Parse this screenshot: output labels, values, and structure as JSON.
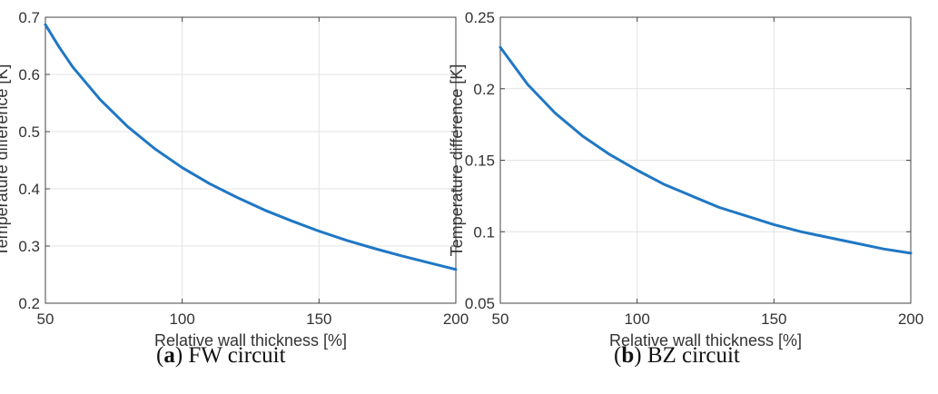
{
  "chart_data": [
    {
      "type": "line",
      "caption": {
        "letter": "a",
        "text": "FW circuit"
      },
      "xlabel": "Relative wall thickness [%]",
      "ylabel": "Temperature difference [K]",
      "xlim": [
        50,
        200
      ],
      "ylim": [
        0.2,
        0.7
      ],
      "xticks": [
        50,
        100,
        150,
        200
      ],
      "yticks": [
        0.2,
        0.3,
        0.4,
        0.5,
        0.6,
        0.7
      ],
      "grid": true,
      "line_color": "#1f77c4",
      "series": [
        {
          "x": [
            50,
            55,
            60,
            70,
            80,
            90,
            100,
            110,
            120,
            130,
            140,
            150,
            160,
            170,
            180,
            190,
            200
          ],
          "values": [
            0.687,
            0.648,
            0.613,
            0.556,
            0.509,
            0.47,
            0.437,
            0.409,
            0.385,
            0.363,
            0.344,
            0.326,
            0.31,
            0.296,
            0.283,
            0.271,
            0.259
          ]
        }
      ]
    },
    {
      "type": "line",
      "caption": {
        "letter": "b",
        "text": "BZ circuit"
      },
      "xlabel": "Relative wall thickness [%]",
      "ylabel": "Temperature difference [K]",
      "xlim": [
        50,
        200
      ],
      "ylim": [
        0.05,
        0.25
      ],
      "xticks": [
        50,
        100,
        150,
        200
      ],
      "yticks": [
        0.05,
        0.1,
        0.15,
        0.2,
        0.25
      ],
      "grid": true,
      "line_color": "#1f77c4",
      "series": [
        {
          "x": [
            50,
            55,
            60,
            70,
            80,
            90,
            100,
            110,
            120,
            130,
            140,
            150,
            160,
            170,
            180,
            190,
            200
          ],
          "values": [
            0.229,
            0.216,
            0.203,
            0.183,
            0.167,
            0.154,
            0.143,
            0.133,
            0.125,
            0.117,
            0.111,
            0.105,
            0.1,
            0.096,
            0.092,
            0.088,
            0.085
          ]
        }
      ]
    }
  ]
}
